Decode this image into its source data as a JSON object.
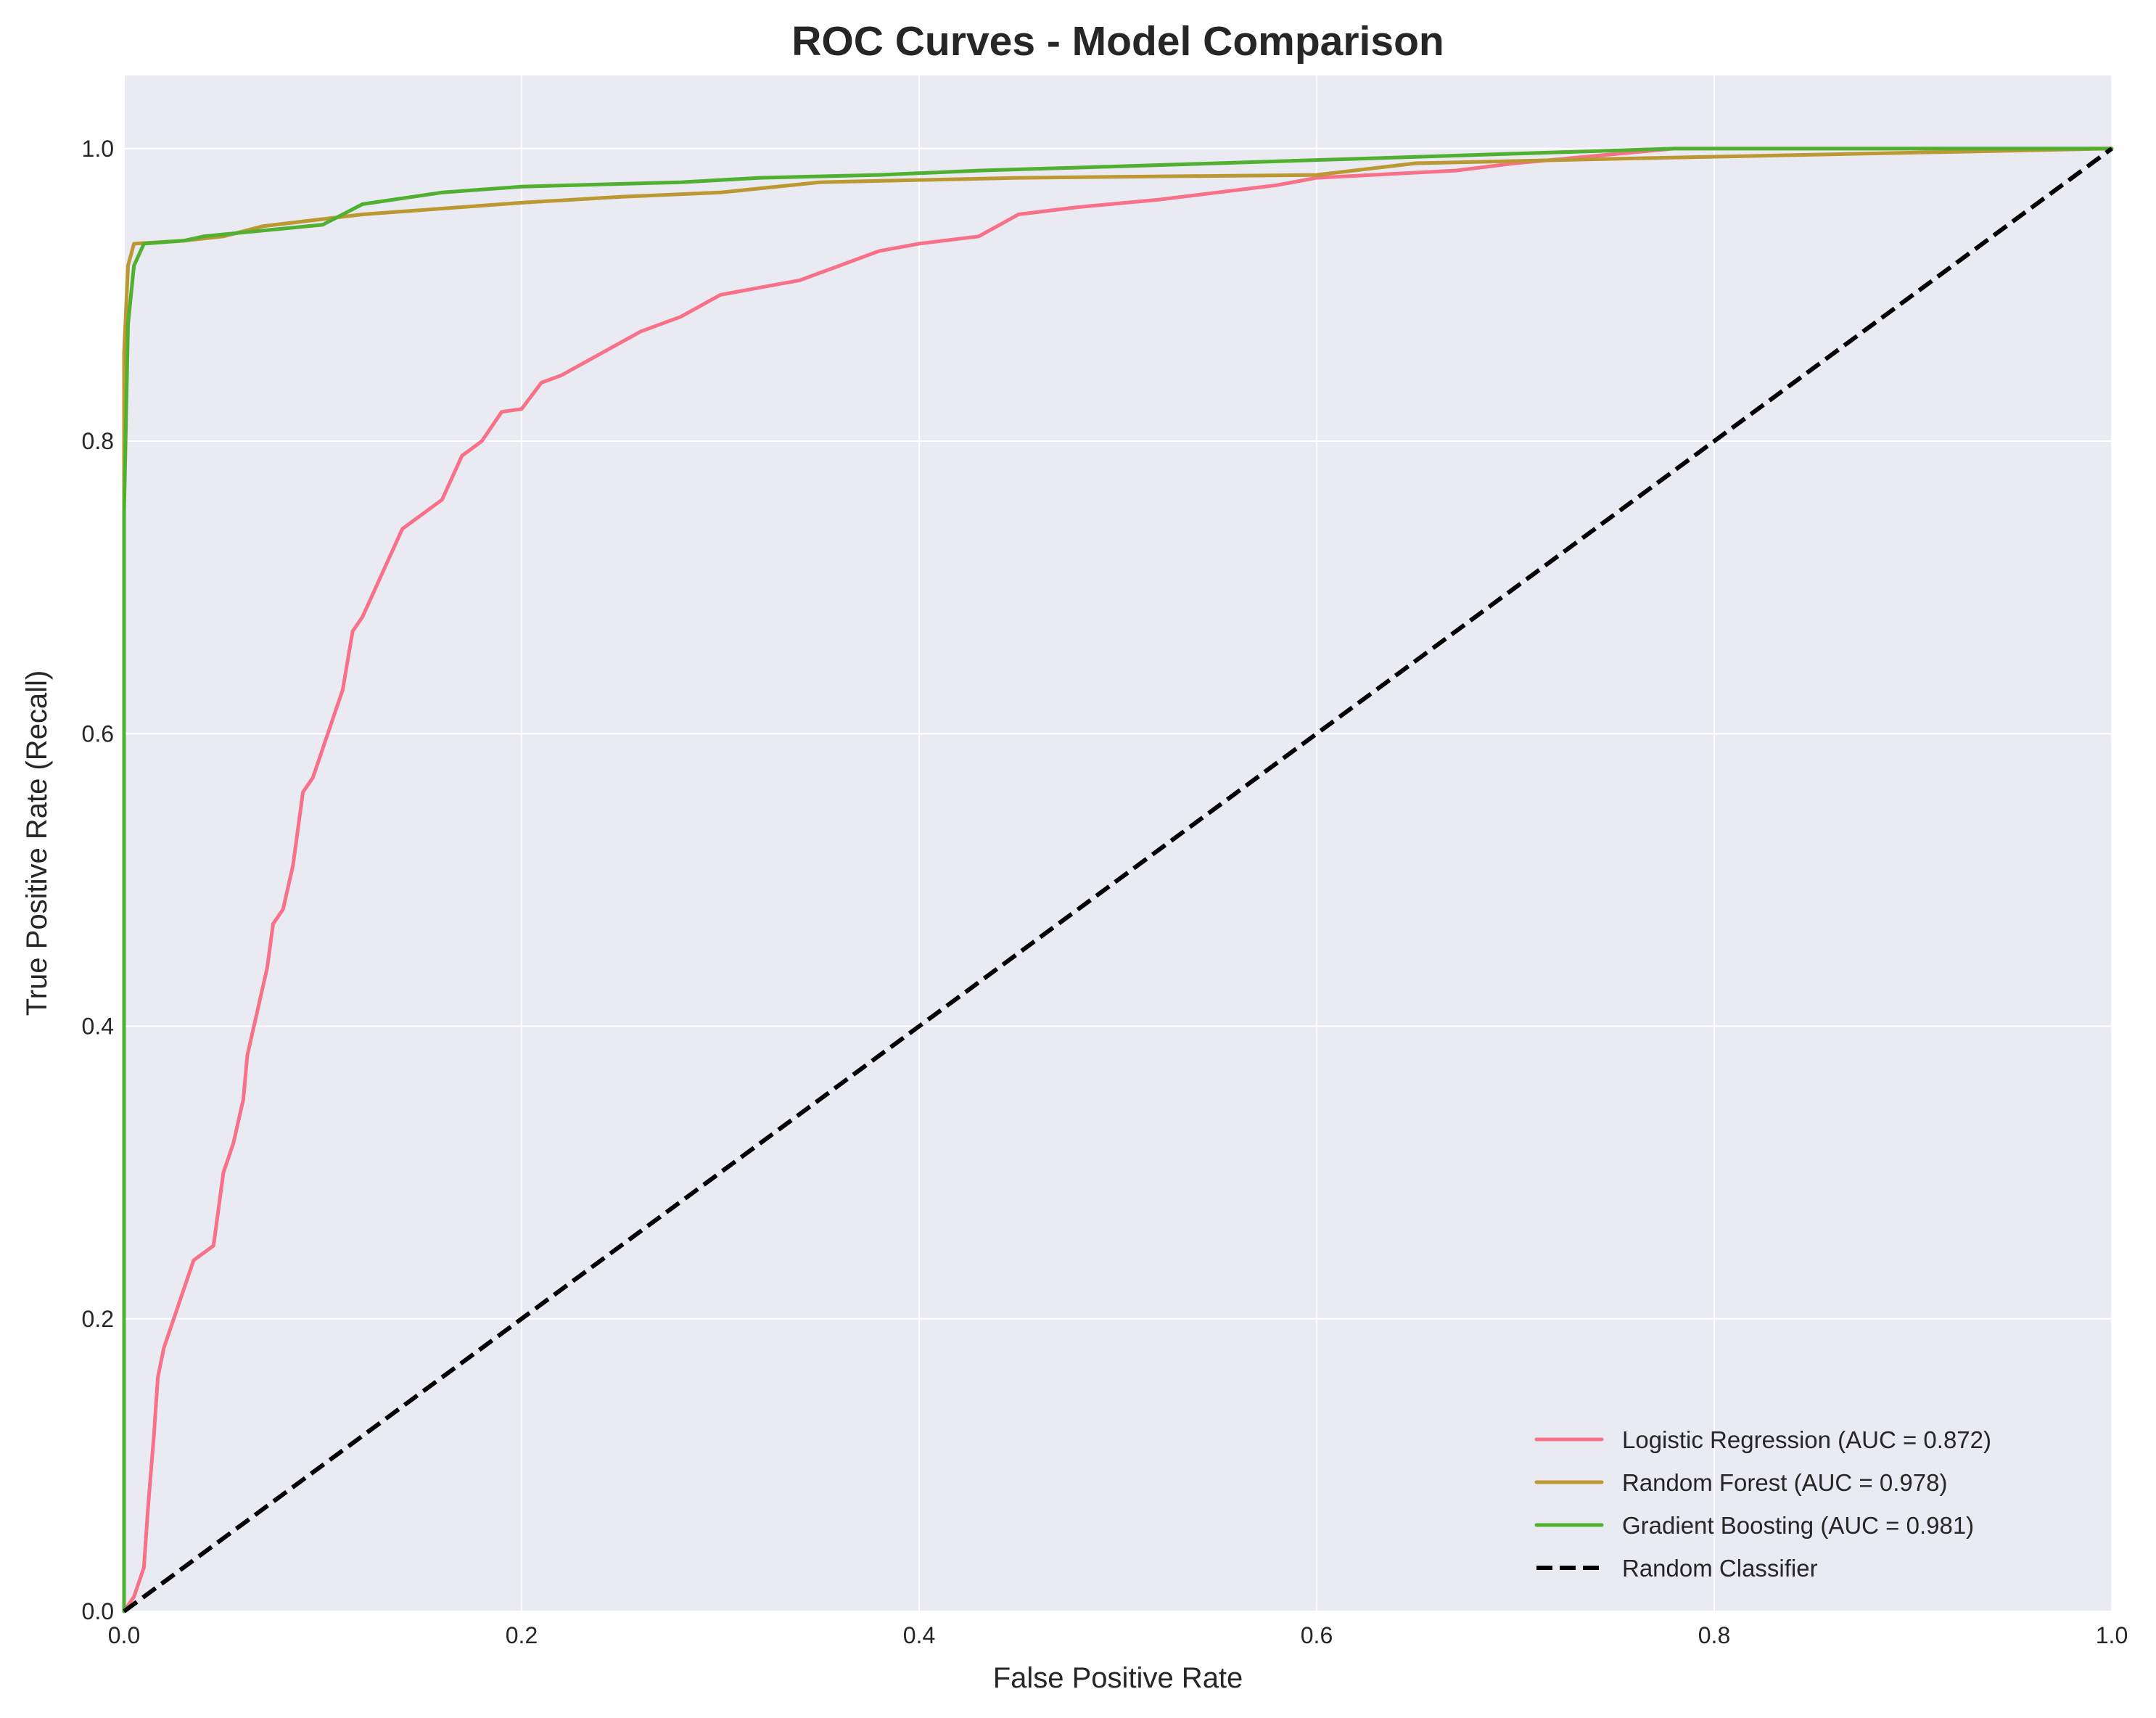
{
  "chart_data": {
    "type": "line",
    "title": "ROC Curves - Model Comparison",
    "xlabel": "False Positive Rate",
    "ylabel": "True Positive Rate (Recall)",
    "xlim": [
      0,
      1.0
    ],
    "ylim": [
      0,
      1.05
    ],
    "grid": true,
    "legend_position": "bottom-right",
    "xticks": [
      "0.0",
      "0.2",
      "0.4",
      "0.6",
      "0.8",
      "1.0"
    ],
    "yticks": [
      "0.0",
      "0.2",
      "0.4",
      "0.6",
      "0.8",
      "1.0"
    ],
    "series": [
      {
        "name": "Logistic Regression (AUC = 0.872)",
        "color": "#f77189",
        "dash": false,
        "x": [
          0,
          0.005,
          0.01,
          0.012,
          0.015,
          0.017,
          0.02,
          0.025,
          0.03,
          0.035,
          0.045,
          0.047,
          0.05,
          0.055,
          0.06,
          0.062,
          0.067,
          0.072,
          0.075,
          0.08,
          0.085,
          0.09,
          0.095,
          0.1,
          0.105,
          0.11,
          0.115,
          0.12,
          0.13,
          0.14,
          0.15,
          0.16,
          0.17,
          0.18,
          0.19,
          0.2,
          0.21,
          0.22,
          0.24,
          0.26,
          0.28,
          0.3,
          0.32,
          0.34,
          0.36,
          0.38,
          0.4,
          0.43,
          0.45,
          0.48,
          0.52,
          0.55,
          0.58,
          0.6,
          0.67,
          0.7,
          0.78,
          1.0
        ],
        "y": [
          0,
          0.01,
          0.03,
          0.07,
          0.12,
          0.16,
          0.18,
          0.2,
          0.22,
          0.24,
          0.25,
          0.27,
          0.3,
          0.32,
          0.35,
          0.38,
          0.41,
          0.44,
          0.47,
          0.48,
          0.51,
          0.56,
          0.57,
          0.59,
          0.61,
          0.63,
          0.67,
          0.68,
          0.71,
          0.74,
          0.75,
          0.76,
          0.79,
          0.8,
          0.82,
          0.822,
          0.84,
          0.845,
          0.86,
          0.875,
          0.885,
          0.9,
          0.905,
          0.91,
          0.92,
          0.93,
          0.935,
          0.94,
          0.955,
          0.96,
          0.965,
          0.97,
          0.975,
          0.98,
          0.985,
          0.99,
          1.0,
          1.0
        ]
      },
      {
        "name": "Random Forest (AUC = 0.978)",
        "color": "#bb9832",
        "dash": false,
        "x": [
          0,
          0,
          0.002,
          0.005,
          0.03,
          0.05,
          0.07,
          0.12,
          0.15,
          0.2,
          0.25,
          0.3,
          0.35,
          0.45,
          0.6,
          0.65,
          0.75,
          1.0
        ],
        "y": [
          0,
          0.86,
          0.92,
          0.935,
          0.937,
          0.94,
          0.947,
          0.955,
          0.958,
          0.963,
          0.967,
          0.97,
          0.977,
          0.98,
          0.982,
          0.99,
          0.993,
          1.0
        ]
      },
      {
        "name": "Gradient Boosting (AUC = 0.981)",
        "color": "#50b131",
        "dash": false,
        "x": [
          0,
          0,
          0.002,
          0.005,
          0.01,
          0.03,
          0.04,
          0.1,
          0.12,
          0.16,
          0.2,
          0.28,
          0.32,
          0.38,
          0.43,
          0.48,
          0.55,
          0.78,
          1.0
        ],
        "y": [
          0,
          0.75,
          0.88,
          0.92,
          0.935,
          0.937,
          0.94,
          0.948,
          0.962,
          0.97,
          0.974,
          0.977,
          0.98,
          0.982,
          0.985,
          0.987,
          0.99,
          1.0,
          1.0
        ]
      },
      {
        "name": "Random Classifier",
        "color": "#000000",
        "dash": true,
        "x": [
          0,
          1
        ],
        "y": [
          0,
          1
        ]
      }
    ]
  }
}
